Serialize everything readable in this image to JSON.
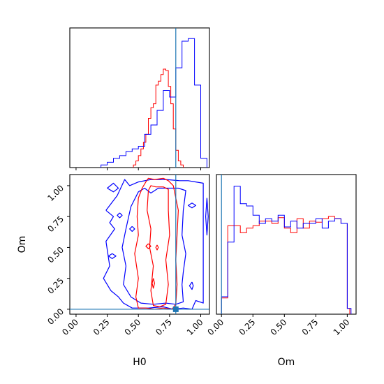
{
  "chart_data": [
    {
      "panel": "H0 marginal",
      "type": "histogram-step",
      "xlim": [
        -0.05,
        1.07
      ],
      "xticks": [
        0.0,
        0.25,
        0.5,
        0.75,
        1.0
      ],
      "truth": 0.8,
      "series": [
        {
          "color": "#ff0000",
          "bin_edges": [
            0.46,
            0.48,
            0.5,
            0.52,
            0.54,
            0.56,
            0.58,
            0.6,
            0.62,
            0.64,
            0.66,
            0.68,
            0.7,
            0.72,
            0.74,
            0.76,
            0.78,
            0.8,
            0.82,
            0.84,
            0.86
          ],
          "counts": [
            0.02,
            0.05,
            0.09,
            0.14,
            0.19,
            0.25,
            0.37,
            0.45,
            0.48,
            0.62,
            0.65,
            0.7,
            0.74,
            0.73,
            0.61,
            0.48,
            0.29,
            0.13,
            0.05,
            0.02
          ]
        },
        {
          "color": "#0000ff",
          "bin_edges": [
            0.2,
            0.25,
            0.3,
            0.35,
            0.4,
            0.45,
            0.5,
            0.55,
            0.6,
            0.65,
            0.7,
            0.75,
            0.8,
            0.85,
            0.9,
            0.95,
            1.0,
            1.05
          ],
          "counts": [
            0.02,
            0.04,
            0.07,
            0.09,
            0.12,
            0.14,
            0.16,
            0.25,
            0.32,
            0.43,
            0.58,
            0.53,
            0.75,
            0.95,
            0.97,
            0.62,
            0.07
          ]
        }
      ]
    },
    {
      "panel": "Om marginal",
      "type": "histogram-step",
      "xlim": [
        -0.04,
        1.07
      ],
      "xticks": [
        0.0,
        0.25,
        0.5,
        0.75,
        1.0
      ],
      "xlabel": "Om",
      "truth": 0.0,
      "series": [
        {
          "color": "#ff0000",
          "bin_edges": [
            0.0,
            0.05,
            0.1,
            0.15,
            0.2,
            0.25,
            0.3,
            0.35,
            0.4,
            0.45,
            0.5,
            0.55,
            0.6,
            0.65,
            0.7,
            0.75,
            0.8,
            0.85,
            0.9,
            0.95,
            1.0,
            1.02
          ],
          "counts": [
            0.14,
            0.76,
            0.76,
            0.7,
            0.74,
            0.76,
            0.8,
            0.8,
            0.78,
            0.83,
            0.74,
            0.7,
            0.82,
            0.74,
            0.8,
            0.79,
            0.82,
            0.84,
            0.82,
            0.78,
            0.05
          ]
        },
        {
          "color": "#0000ff",
          "bin_edges": [
            0.0,
            0.05,
            0.1,
            0.15,
            0.2,
            0.25,
            0.3,
            0.35,
            0.4,
            0.45,
            0.5,
            0.55,
            0.6,
            0.65,
            0.7,
            0.75,
            0.8,
            0.85,
            0.9,
            0.95,
            1.0,
            1.03
          ],
          "counts": [
            0.15,
            0.62,
            1.1,
            0.95,
            0.93,
            0.85,
            0.78,
            0.82,
            0.8,
            0.85,
            0.75,
            0.8,
            0.74,
            0.78,
            0.78,
            0.82,
            0.74,
            0.8,
            0.82,
            0.78,
            0.05
          ]
        }
      ]
    },
    {
      "panel": "H0 vs Om",
      "type": "contour",
      "xlabel": "H0",
      "ylabel": "Om",
      "xlim": [
        -0.05,
        1.07
      ],
      "ylim": [
        -0.04,
        1.09
      ],
      "xticks": [
        0.0,
        0.25,
        0.5,
        0.75,
        1.0
      ],
      "yticks": [
        0.0,
        0.25,
        0.5,
        0.75,
        1.0
      ],
      "truth": {
        "H0": 0.8,
        "Om": 0.0
      },
      "series": [
        {
          "color": "#0000ff",
          "level": "outer",
          "x": [
            0.24,
            0.33,
            0.39,
            0.43,
            0.5,
            0.6,
            0.72,
            0.83,
            0.9,
            0.96,
            1.02,
            1.02,
            0.96,
            0.93,
            0.86,
            0.78,
            0.7,
            0.58,
            0.45,
            0.38,
            0.34,
            0.28,
            0.22,
            0.27,
            0.24,
            0.31,
            0.27,
            0.3,
            0.24
          ],
          "y": [
            0.8,
            0.92,
            1.05,
            1.0,
            1.03,
            1.05,
            1.05,
            1.04,
            1.04,
            1.03,
            1.02,
            0.05,
            0.07,
            0.0,
            0.01,
            0.0,
            0.02,
            0.01,
            0.01,
            0.05,
            0.1,
            0.15,
            0.25,
            0.35,
            0.55,
            0.65,
            0.7,
            0.75,
            0.8
          ]
        },
        {
          "color": "#0000ff",
          "level": "inner",
          "x": [
            0.44,
            0.5,
            0.55,
            0.6,
            0.66,
            0.75,
            0.82,
            0.88,
            0.86,
            0.85,
            0.88,
            0.86,
            0.85,
            0.86,
            0.8,
            0.72,
            0.62,
            0.52,
            0.44,
            0.38,
            0.4,
            0.37,
            0.4,
            0.44
          ],
          "y": [
            0.83,
            0.95,
            0.98,
            0.94,
            0.98,
            0.98,
            0.98,
            0.96,
            0.8,
            0.6,
            0.45,
            0.3,
            0.2,
            0.06,
            0.04,
            0.05,
            0.04,
            0.05,
            0.1,
            0.2,
            0.35,
            0.5,
            0.65,
            0.83
          ]
        },
        {
          "color": "#ff0000",
          "level": "outer",
          "x": [
            0.53,
            0.56,
            0.58,
            0.63,
            0.7,
            0.74,
            0.78,
            0.82,
            0.81,
            0.8,
            0.81,
            0.8,
            0.77,
            0.7,
            0.63,
            0.56,
            0.5,
            0.48,
            0.5,
            0.47,
            0.5,
            0.49,
            0.5,
            0.53
          ],
          "y": [
            0.98,
            1.03,
            1.06,
            1.05,
            1.06,
            1.04,
            1.0,
            0.8,
            0.6,
            0.4,
            0.2,
            0.04,
            0.0,
            0.01,
            0.0,
            0.01,
            0.01,
            0.1,
            0.25,
            0.45,
            0.6,
            0.75,
            0.9,
            0.98
          ]
        },
        {
          "color": "#ff0000",
          "level": "inner",
          "x": [
            0.58,
            0.6,
            0.64,
            0.7,
            0.74,
            0.74,
            0.75,
            0.72,
            0.74,
            0.72,
            0.67,
            0.62,
            0.6,
            0.62,
            0.59,
            0.6,
            0.57,
            0.58
          ],
          "y": [
            0.96,
            1.0,
            0.99,
            0.99,
            0.97,
            0.8,
            0.6,
            0.4,
            0.2,
            0.04,
            0.02,
            0.03,
            0.15,
            0.35,
            0.5,
            0.65,
            0.8,
            0.96
          ]
        },
        {
          "color": "#0000ff",
          "level": "island",
          "x": [
            0.25,
            0.3,
            0.34,
            0.3,
            0.25
          ],
          "y": [
            0.98,
            1.02,
            0.98,
            0.95,
            0.98
          ]
        },
        {
          "color": "#0000ff",
          "level": "island",
          "x": [
            0.35,
            0.37,
            0.35,
            0.33,
            0.35
          ],
          "y": [
            0.78,
            0.76,
            0.74,
            0.76,
            0.78
          ]
        },
        {
          "color": "#0000ff",
          "level": "island",
          "x": [
            0.29,
            0.32,
            0.29,
            0.26,
            0.29
          ],
          "y": [
            0.45,
            0.43,
            0.41,
            0.43,
            0.45
          ]
        },
        {
          "color": "#0000ff",
          "level": "island",
          "x": [
            0.45,
            0.47,
            0.45,
            0.43,
            0.45
          ],
          "y": [
            0.67,
            0.65,
            0.63,
            0.65,
            0.67
          ]
        },
        {
          "color": "#0000ff",
          "level": "island",
          "x": [
            0.93,
            0.96,
            0.93,
            0.9,
            0.93
          ],
          "y": [
            0.86,
            0.84,
            0.82,
            0.84,
            0.86
          ]
        },
        {
          "color": "#0000ff",
          "level": "island",
          "x": [
            0.93,
            0.94,
            0.93,
            0.91,
            0.93
          ],
          "y": [
            0.22,
            0.19,
            0.16,
            0.19,
            0.22
          ]
        },
        {
          "color": "#0000ff",
          "level": "island",
          "x": [
            1.05,
            1.06,
            1.05,
            1.04,
            1.05
          ],
          "y": [
            0.9,
            0.75,
            0.6,
            0.75,
            0.9
          ]
        },
        {
          "color": "#ff0000",
          "level": "island",
          "x": [
            0.58,
            0.6,
            0.58,
            0.56,
            0.58
          ],
          "y": [
            0.53,
            0.51,
            0.49,
            0.51,
            0.53
          ]
        },
        {
          "color": "#ff0000",
          "level": "island",
          "x": [
            0.65,
            0.66,
            0.65,
            0.64,
            0.65
          ],
          "y": [
            0.52,
            0.5,
            0.48,
            0.5,
            0.52
          ]
        },
        {
          "color": "#ff0000",
          "level": "island",
          "x": [
            0.62,
            0.63,
            0.62,
            0.61,
            0.62
          ],
          "y": [
            0.25,
            0.21,
            0.17,
            0.21,
            0.25
          ]
        }
      ]
    }
  ],
  "colors": {
    "posterior_a": "#ff0000",
    "posterior_b": "#0000ff",
    "truth_line": "#1f77b4"
  }
}
